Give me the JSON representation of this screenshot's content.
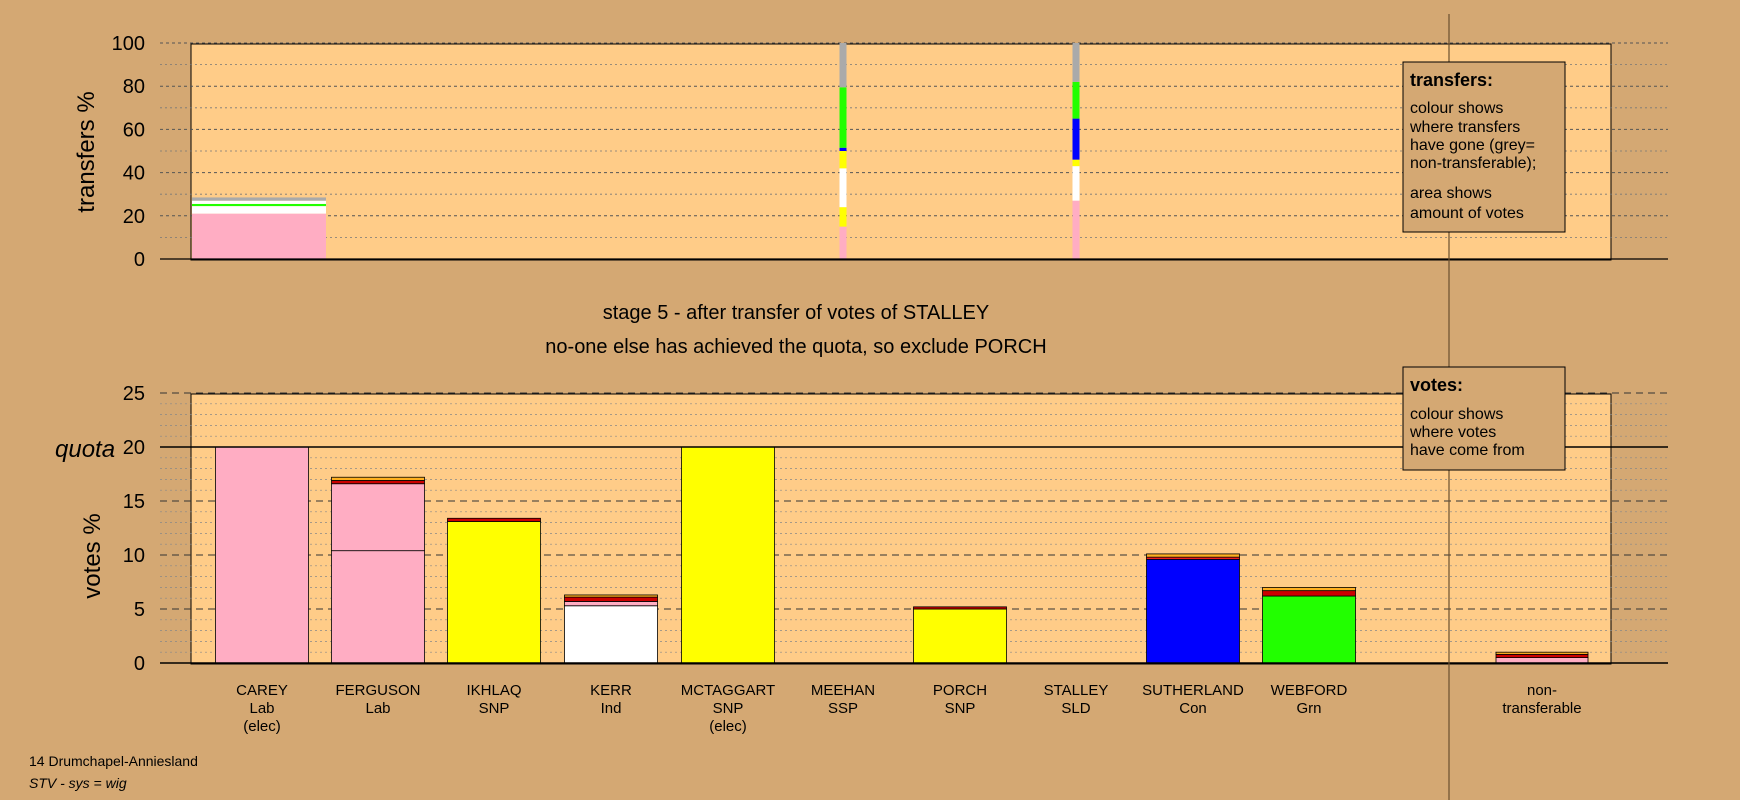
{
  "footer": {
    "constituency": "14 Drumchapel-Anniesland",
    "system": "STV - sys = wig"
  },
  "stage": {
    "line1": "stage 5 - after transfer of votes of STALLEY",
    "line2": "no-one else has achieved the quota, so exclude PORCH"
  },
  "legend_transfers": {
    "title": "transfers:",
    "lines": [
      "colour shows",
      "where transfers",
      "have gone (grey=",
      "non-transferable);",
      "area shows",
      "amount of votes"
    ]
  },
  "legend_votes": {
    "title": "votes:",
    "lines": [
      "colour shows",
      "where votes",
      "have come from"
    ]
  },
  "colors": {
    "background": "#d4a873",
    "plot_bg": "#ffcc88",
    "Lab": "#ffadc3",
    "SNP": "#ffff00",
    "Ind": "#ffffff",
    "SSP": "#ff2020",
    "SLD": "#ffb020",
    "Con": "#0000ff",
    "Grn": "#22ff00",
    "non-transferable": "#aaaaaa",
    "dark_red": "#cc0000"
  },
  "chart_data": [
    {
      "type": "bar",
      "ylabel": "transfers %",
      "ylim": [
        0,
        100
      ],
      "yticks": [
        0,
        20,
        40,
        60,
        80,
        100
      ],
      "bars": [
        {
          "candidate_index": 0,
          "width": "wide",
          "segments": [
            {
              "party": "Lab",
              "value": 21
            },
            {
              "party": "Ind",
              "value": 3.5
            },
            {
              "party": "Grn",
              "value": 1
            },
            {
              "party": "Ind",
              "value": 1.5
            },
            {
              "party": "non-transferable",
              "value": 1.5
            }
          ]
        },
        {
          "candidate_index": 5,
          "width": "thin",
          "segments": [
            {
              "party": "Lab",
              "value": 15
            },
            {
              "party": "SNP",
              "value": 9
            },
            {
              "party": "Ind",
              "value": 18
            },
            {
              "party": "SNP",
              "value": 8
            },
            {
              "party": "Con",
              "value": 1.5
            },
            {
              "party": "Grn",
              "value": 28
            },
            {
              "party": "non-transferable",
              "value": 20.5
            }
          ]
        },
        {
          "candidate_index": 7,
          "width": "thin",
          "segments": [
            {
              "party": "Lab",
              "value": 27
            },
            {
              "party": "Ind",
              "value": 16
            },
            {
              "party": "SNP",
              "value": 3
            },
            {
              "party": "Con",
              "value": 19
            },
            {
              "party": "Grn",
              "value": 17
            },
            {
              "party": "non-transferable",
              "value": 18
            }
          ]
        }
      ]
    },
    {
      "type": "bar",
      "ylabel": "votes %",
      "ylim": [
        0,
        25
      ],
      "yticks": [
        0,
        5,
        10,
        15,
        20,
        25
      ],
      "quota": 20,
      "quota_label": "quota",
      "categories": [
        {
          "name": "CAREY",
          "party": "Lab",
          "note": "(elec)"
        },
        {
          "name": "FERGUSON",
          "party": "Lab",
          "note": ""
        },
        {
          "name": "IKHLAQ",
          "party": "SNP",
          "note": ""
        },
        {
          "name": "KERR",
          "party": "Ind",
          "note": ""
        },
        {
          "name": "MCTAGGART",
          "party": "SNP",
          "note": "(elec)"
        },
        {
          "name": "MEEHAN",
          "party": "SSP",
          "note": ""
        },
        {
          "name": "PORCH",
          "party": "SNP",
          "note": ""
        },
        {
          "name": "STALLEY",
          "party": "SLD",
          "note": ""
        },
        {
          "name": "SUTHERLAND",
          "party": "Con",
          "note": ""
        },
        {
          "name": "WEBFORD",
          "party": "Grn",
          "note": ""
        },
        {
          "name": "non-",
          "party": "transferable",
          "note": ""
        }
      ],
      "bars": [
        [
          {
            "party": "Lab",
            "value": 20
          }
        ],
        [
          {
            "party": "Lab",
            "value": 10.4
          },
          {
            "party": "Lab",
            "value": 6.2
          },
          {
            "party": "dark_red",
            "value": 0.3
          },
          {
            "party": "SLD",
            "value": 0.3
          }
        ],
        [
          {
            "party": "SNP",
            "value": 13.1
          },
          {
            "party": "dark_red",
            "value": 0.3
          }
        ],
        [
          {
            "party": "Ind",
            "value": 5.3
          },
          {
            "party": "Lab",
            "value": 0.4
          },
          {
            "party": "dark_red",
            "value": 0.4
          },
          {
            "party": "SLD",
            "value": 0.2
          }
        ],
        [
          {
            "party": "SNP",
            "value": 20
          }
        ],
        [],
        [
          {
            "party": "SNP",
            "value": 5.0
          },
          {
            "party": "dark_red",
            "value": 0.2
          }
        ],
        [],
        [
          {
            "party": "Con",
            "value": 9.6
          },
          {
            "party": "SSP",
            "value": 0.2
          },
          {
            "party": "SLD",
            "value": 0.3
          }
        ],
        [
          {
            "party": "Grn",
            "value": 6.2
          },
          {
            "party": "dark_red",
            "value": 0.5
          },
          {
            "party": "SLD",
            "value": 0.3
          }
        ],
        [
          {
            "party": "Lab",
            "value": 0.5
          },
          {
            "party": "dark_red",
            "value": 0.3
          },
          {
            "party": "SLD",
            "value": 0.2
          }
        ]
      ]
    }
  ]
}
